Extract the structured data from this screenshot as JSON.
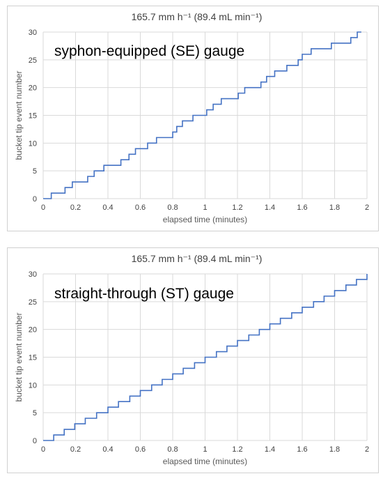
{
  "chart_data": [
    {
      "type": "line",
      "title": "165.7 mm h⁻¹ (89.4 mL min⁻¹)",
      "annotation": "syphon-equipped (SE) gauge",
      "xlabel": "elapsed time (minutes)",
      "ylabel": "bucket tip event number",
      "xlim": [
        0,
        2
      ],
      "ylim": [
        0,
        30
      ],
      "xticks": [
        "0",
        "0.2",
        "0.4",
        "0.6",
        "0.8",
        "1",
        "1.2",
        "1.4",
        "1.6",
        "1.8",
        "2"
      ],
      "yticks": [
        "0",
        "5",
        "10",
        "15",
        "20",
        "25",
        "30"
      ],
      "grid": true,
      "line_color": "#4472c4",
      "series": [
        {
          "step": "post",
          "x": [
            0,
            0.05,
            0.135,
            0.18,
            0.275,
            0.315,
            0.375,
            0.48,
            0.53,
            0.57,
            0.645,
            0.7,
            0.8,
            0.825,
            0.86,
            0.925,
            1.01,
            1.05,
            1.1,
            1.205,
            1.245,
            1.345,
            1.38,
            1.43,
            1.505,
            1.575,
            1.6,
            1.655,
            1.78,
            1.9,
            1.94,
            1.965
          ],
          "y": [
            0,
            1,
            2,
            3,
            4,
            5,
            6,
            7,
            8,
            9,
            10,
            11,
            12,
            13,
            14,
            15,
            16,
            17,
            18,
            19,
            20,
            21,
            22,
            23,
            24,
            25,
            26,
            27,
            28,
            29,
            30,
            30
          ]
        }
      ]
    },
    {
      "type": "line",
      "title": "165.7 mm h⁻¹ (89.4 mL min⁻¹)",
      "annotation": "straight-through (ST) gauge",
      "xlabel": "elapsed time (minutes)",
      "ylabel": "bucket tip event number",
      "xlim": [
        0,
        2
      ],
      "ylim": [
        0,
        30
      ],
      "xticks": [
        "0",
        "0.2",
        "0.4",
        "0.6",
        "0.8",
        "1",
        "1.2",
        "1.4",
        "1.6",
        "1.8",
        "2"
      ],
      "yticks": [
        "0",
        "5",
        "10",
        "15",
        "20",
        "25",
        "30"
      ],
      "grid": true,
      "line_color": "#4472c4",
      "series": [
        {
          "step": "post",
          "x": [
            0,
            0.065,
            0.13,
            0.195,
            0.26,
            0.33,
            0.4,
            0.465,
            0.535,
            0.6,
            0.67,
            0.735,
            0.8,
            0.865,
            0.935,
            1.0,
            1.07,
            1.135,
            1.2,
            1.27,
            1.335,
            1.4,
            1.465,
            1.535,
            1.6,
            1.67,
            1.735,
            1.8,
            1.87,
            1.935,
            2.0
          ],
          "y": [
            0,
            1,
            2,
            3,
            4,
            5,
            6,
            7,
            8,
            9,
            10,
            11,
            12,
            13,
            14,
            15,
            16,
            17,
            18,
            19,
            20,
            21,
            22,
            23,
            24,
            25,
            26,
            27,
            28,
            29,
            30
          ]
        }
      ]
    }
  ]
}
